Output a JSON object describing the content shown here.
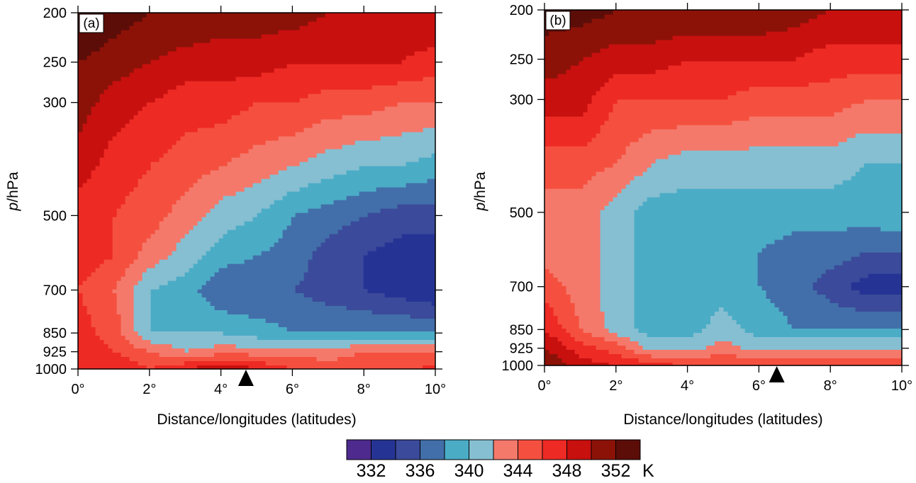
{
  "colorbar": {
    "colors": [
      "#4e2a8e",
      "#253494",
      "#3b4a9a",
      "#426fa9",
      "#4bacc6",
      "#86bfd1",
      "#f4796b",
      "#f5503f",
      "#ee2a24",
      "#c8100f",
      "#8c1208",
      "#5c0d08"
    ],
    "labels": [
      "332",
      "336",
      "340",
      "344",
      "348",
      "352"
    ],
    "unit": "K"
  },
  "chart_data": [
    {
      "type": "contour",
      "panel_label": "(a)",
      "xlabel": "Distance/longitudes (latitudes)",
      "ylabel_italic": "p",
      "ylabel_rest": "/hPa",
      "xlim": [
        0,
        10
      ],
      "ylim": [
        1000,
        200
      ],
      "y_scale": "log",
      "x_ticks": [
        {
          "v": 0,
          "t": "0°"
        },
        {
          "v": 2,
          "t": "2°"
        },
        {
          "v": 4,
          "t": "4°"
        },
        {
          "v": 6,
          "t": "6°"
        },
        {
          "v": 8,
          "t": "8°"
        },
        {
          "v": 10,
          "t": "10°"
        }
      ],
      "y_ticks": [
        {
          "v": 200,
          "t": "200"
        },
        {
          "v": 250,
          "t": "250"
        },
        {
          "v": 300,
          "t": "300"
        },
        {
          "v": 500,
          "t": "500"
        },
        {
          "v": 700,
          "t": "700"
        },
        {
          "v": 850,
          "t": "850"
        },
        {
          "v": 925,
          "t": "925"
        },
        {
          "v": 1000,
          "t": "1000"
        }
      ],
      "levels": [
        332,
        334,
        336,
        338,
        340,
        342,
        344,
        346,
        348,
        350,
        352
      ],
      "marker_x": 4.7,
      "x": [
        0,
        1,
        2,
        3,
        4,
        5,
        6,
        7,
        8,
        9,
        10
      ],
      "p": [
        1000,
        925,
        850,
        700,
        600,
        500,
        400,
        300,
        250,
        200
      ],
      "z": [
        [
          348,
          348,
          346,
          348,
          350,
          348,
          346,
          345,
          345,
          345,
          347
        ],
        [
          347,
          346,
          344,
          342,
          343,
          343,
          343,
          343,
          344,
          344,
          344
        ],
        [
          347,
          345,
          340,
          340,
          340,
          339,
          338,
          338,
          338,
          338,
          338
        ],
        [
          346,
          344,
          340,
          339,
          336,
          336,
          336,
          335,
          334,
          333,
          332
        ],
        [
          347,
          346,
          343,
          341,
          339,
          338,
          337,
          335,
          334,
          333,
          333
        ],
        [
          347,
          346,
          345,
          343,
          341,
          340,
          338,
          337,
          336,
          335,
          335
        ],
        [
          349,
          347,
          346,
          345,
          344,
          343,
          342,
          341,
          340,
          340,
          339
        ],
        [
          351,
          349,
          348,
          347,
          347,
          346,
          346,
          345,
          345,
          344,
          344
        ],
        [
          352,
          351,
          350,
          349,
          349,
          349,
          348,
          348,
          348,
          348,
          347
        ],
        [
          354,
          353,
          352,
          352,
          351,
          351,
          351,
          350,
          350,
          350,
          350
        ]
      ]
    },
    {
      "type": "contour",
      "panel_label": "(b)",
      "xlabel": "Distance/longitudes (latitudes)",
      "ylabel_italic": "p",
      "ylabel_rest": "/hPa",
      "xlim": [
        0,
        10
      ],
      "ylim": [
        1000,
        200
      ],
      "y_scale": "log",
      "x_ticks": [
        {
          "v": 0,
          "t": "0°"
        },
        {
          "v": 2,
          "t": "2°"
        },
        {
          "v": 4,
          "t": "4°"
        },
        {
          "v": 6,
          "t": "6°"
        },
        {
          "v": 8,
          "t": "8°"
        },
        {
          "v": 10,
          "t": "10°"
        }
      ],
      "y_ticks": [
        {
          "v": 200,
          "t": "200"
        },
        {
          "v": 250,
          "t": "250"
        },
        {
          "v": 300,
          "t": "300"
        },
        {
          "v": 500,
          "t": "500"
        },
        {
          "v": 700,
          "t": "700"
        },
        {
          "v": 850,
          "t": "850"
        },
        {
          "v": 925,
          "t": "925"
        },
        {
          "v": 1000,
          "t": "1000"
        }
      ],
      "levels": [
        332,
        334,
        336,
        338,
        340,
        342,
        344,
        346,
        348,
        350,
        352
      ],
      "marker_x": 6.5,
      "x": [
        0,
        1,
        2,
        3,
        4,
        5,
        6,
        7,
        8,
        9,
        10
      ],
      "p": [
        1000,
        925,
        850,
        700,
        600,
        500,
        400,
        300,
        250,
        200
      ],
      "z": [
        [
          352,
          349,
          348,
          347,
          346,
          346,
          346,
          346,
          346,
          346,
          346
        ],
        [
          350,
          347,
          345,
          341,
          341,
          343,
          341,
          342,
          342,
          342,
          342
        ],
        [
          348,
          344,
          341,
          339,
          339,
          341,
          339,
          338,
          338,
          338,
          338
        ],
        [
          345,
          343,
          341,
          339,
          339,
          339,
          338,
          337,
          335,
          333,
          333
        ],
        [
          343,
          343,
          341,
          339,
          339,
          339,
          338,
          337,
          337,
          336,
          336
        ],
        [
          343,
          343,
          341,
          339,
          339,
          339,
          339,
          339,
          339,
          339,
          340
        ],
        [
          345,
          345,
          344,
          342,
          341,
          341,
          341,
          341,
          341,
          340,
          340
        ],
        [
          349,
          349,
          346,
          346,
          346,
          346,
          345,
          345,
          345,
          344,
          344
        ],
        [
          351,
          350,
          349,
          349,
          348,
          348,
          348,
          348,
          347,
          347,
          347
        ],
        [
          353,
          353,
          352,
          352,
          352,
          352,
          352,
          351,
          350,
          350,
          350
        ]
      ]
    }
  ]
}
